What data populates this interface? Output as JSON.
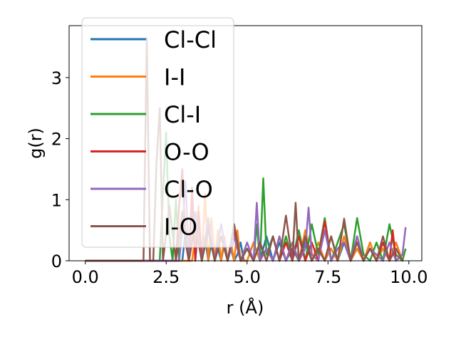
{
  "chart_data": {
    "type": "line",
    "xlabel": "r (Å)",
    "ylabel": "g(r)",
    "xlim": [
      -0.5,
      10.4
    ],
    "ylim": [
      0,
      3.85
    ],
    "xticks": [
      "0.0",
      "2.5",
      "5.0",
      "7.5",
      "10.0"
    ],
    "yticks": [
      "0",
      "1",
      "2",
      "3"
    ],
    "grid": false,
    "legend_position": "top-left",
    "series": [
      {
        "name": "Cl-Cl",
        "color": "#1f77b4",
        "x": [
          0.0,
          3.0,
          3.1,
          3.2,
          3.3,
          3.4,
          3.5,
          3.6,
          3.7,
          3.8,
          3.9,
          4.0,
          4.1,
          4.2,
          4.3,
          4.4,
          4.5,
          4.6,
          4.7,
          4.8,
          4.9,
          5.0,
          5.2,
          5.4,
          5.6,
          5.8,
          6.0,
          6.2,
          6.4,
          6.6,
          6.8,
          7.0,
          7.2,
          7.4,
          7.6,
          7.8,
          8.0,
          8.2,
          8.4,
          8.6,
          8.8,
          9.0,
          9.2,
          9.4,
          9.6,
          9.8
        ],
        "y": [
          0.0,
          0.0,
          0.5,
          0.0,
          1.0,
          0.0,
          0.6,
          0.0,
          0.4,
          0.0,
          0.3,
          0.0,
          0.2,
          0.0,
          0.3,
          0.0,
          0.2,
          0.0,
          0.1,
          0.3,
          0.0,
          0.0,
          0.3,
          0.0,
          0.4,
          0.0,
          0.3,
          0.0,
          0.2,
          0.0,
          0.3,
          0.0,
          0.2,
          0.0,
          0.4,
          0.0,
          0.3,
          0.0,
          0.2,
          0.0,
          0.3,
          0.0,
          0.2,
          0.0,
          0.3,
          0.0
        ]
      },
      {
        "name": "I-I",
        "color": "#ff7f0e",
        "x": [
          0.0,
          3.3,
          3.4,
          3.5,
          3.6,
          3.7,
          3.8,
          3.9,
          4.0,
          4.1,
          4.2,
          4.3,
          4.4,
          4.5,
          4.6,
          4.7,
          4.8,
          5.0,
          5.2,
          5.4,
          5.6,
          5.8,
          6.0,
          6.2,
          6.4,
          6.6,
          6.8,
          7.0,
          7.2,
          7.4,
          7.6,
          7.8,
          8.0,
          8.2,
          8.4,
          8.6,
          8.8,
          9.0,
          9.2,
          9.4,
          9.6,
          9.8
        ],
        "y": [
          0.0,
          0.0,
          0.4,
          0.9,
          0.0,
          1.1,
          0.0,
          0.7,
          0.0,
          0.5,
          0.0,
          0.4,
          0.0,
          0.3,
          0.0,
          0.5,
          0.0,
          0.0,
          0.3,
          0.0,
          0.2,
          0.0,
          0.4,
          0.0,
          0.3,
          0.0,
          0.5,
          0.0,
          0.3,
          0.0,
          0.2,
          0.0,
          0.4,
          0.0,
          0.2,
          0.0,
          0.3,
          0.0,
          0.2,
          0.0,
          0.3,
          0.0
        ]
      },
      {
        "name": "Cl-I",
        "color": "#2ca02c",
        "x": [
          0.0,
          2.3,
          2.4,
          2.5,
          2.6,
          2.7,
          2.8,
          2.9,
          3.0,
          3.2,
          3.4,
          3.6,
          3.8,
          4.0,
          4.2,
          4.4,
          4.6,
          4.8,
          5.0,
          5.2,
          5.3,
          5.4,
          5.5,
          5.6,
          5.8,
          6.0,
          6.2,
          6.4,
          6.6,
          6.8,
          7.0,
          7.2,
          7.4,
          7.6,
          7.8,
          8.0,
          8.2,
          8.4,
          8.6,
          8.8,
          9.0,
          9.2,
          9.4,
          9.6,
          9.8,
          9.9
        ],
        "y": [
          0.0,
          0.0,
          1.1,
          2.1,
          0.4,
          0.0,
          1.0,
          0.0,
          0.7,
          0.0,
          0.6,
          0.0,
          0.5,
          0.0,
          0.4,
          0.0,
          0.5,
          0.0,
          0.2,
          0.0,
          0.6,
          0.0,
          1.35,
          0.1,
          0.4,
          0.0,
          0.4,
          0.0,
          0.5,
          0.0,
          0.6,
          0.1,
          0.7,
          0.0,
          0.3,
          0.6,
          0.0,
          0.7,
          0.1,
          0.0,
          0.3,
          0.0,
          0.6,
          0.1,
          0.0,
          0.2
        ]
      },
      {
        "name": "O-O",
        "color": "#d62728",
        "x": [
          0.0,
          2.8,
          2.9,
          3.0,
          3.1,
          3.2,
          3.3,
          3.4,
          3.5,
          3.6,
          3.8,
          4.0,
          4.2,
          4.4,
          4.6,
          4.8,
          5.0,
          5.2,
          5.4,
          5.6,
          5.8,
          6.0,
          6.2,
          6.4,
          6.6,
          6.8,
          7.0,
          7.2,
          7.4,
          7.6,
          7.8,
          8.0,
          8.2,
          8.4,
          8.6,
          8.8,
          9.0,
          9.2,
          9.4,
          9.5,
          9.6,
          9.8
        ],
        "y": [
          0.0,
          0.0,
          0.9,
          1.5,
          0.3,
          0.0,
          1.2,
          0.0,
          0.8,
          0.0,
          0.6,
          0.0,
          0.4,
          0.0,
          0.5,
          0.0,
          0.2,
          0.0,
          0.3,
          0.0,
          0.4,
          0.0,
          0.3,
          0.0,
          0.4,
          0.0,
          0.3,
          0.0,
          0.65,
          0.0,
          0.2,
          0.3,
          0.0,
          0.4,
          0.0,
          0.2,
          0.0,
          0.3,
          0.0,
          0.5,
          0.0,
          0.1
        ]
      },
      {
        "name": "Cl-O",
        "color": "#9467bd",
        "x": [
          0.0,
          2.9,
          3.0,
          3.1,
          3.2,
          3.4,
          3.6,
          3.8,
          4.0,
          4.2,
          4.4,
          4.6,
          4.8,
          5.0,
          5.2,
          5.3,
          5.4,
          5.6,
          5.8,
          6.0,
          6.2,
          6.4,
          6.6,
          6.8,
          6.9,
          7.0,
          7.2,
          7.4,
          7.6,
          7.8,
          8.0,
          8.2,
          8.4,
          8.6,
          8.8,
          9.0,
          9.2,
          9.4,
          9.6,
          9.8,
          9.9
        ],
        "y": [
          0.0,
          0.0,
          0.5,
          1.3,
          0.0,
          0.8,
          0.0,
          0.7,
          0.0,
          0.6,
          0.0,
          0.4,
          0.0,
          0.3,
          0.0,
          0.95,
          0.0,
          0.2,
          0.0,
          0.4,
          0.0,
          0.3,
          0.0,
          0.2,
          0.87,
          0.1,
          0.0,
          0.5,
          0.0,
          0.2,
          0.3,
          0.0,
          0.4,
          0.0,
          0.2,
          0.1,
          0.0,
          0.3,
          0.0,
          0.1,
          0.55
        ]
      },
      {
        "name": "I-O",
        "color": "#8c564b",
        "x": [
          0.0,
          1.8,
          1.9,
          2.0,
          2.1,
          2.2,
          2.3,
          2.4,
          2.6,
          2.8,
          3.0,
          3.2,
          3.4,
          3.6,
          3.8,
          4.0,
          4.2,
          4.4,
          4.6,
          4.8,
          5.0,
          5.2,
          5.4,
          5.6,
          5.8,
          6.0,
          6.2,
          6.4,
          6.5,
          6.6,
          6.8,
          7.0,
          7.2,
          7.4,
          7.6,
          7.8,
          8.0,
          8.2,
          8.4,
          8.6,
          8.8,
          9.0,
          9.2,
          9.4,
          9.6,
          9.8
        ],
        "y": [
          0.0,
          0.0,
          3.65,
          0.0,
          0.0,
          1.6,
          2.5,
          0.0,
          0.9,
          0.0,
          0.8,
          0.0,
          0.6,
          0.0,
          0.5,
          0.0,
          0.4,
          0.0,
          0.6,
          0.0,
          0.2,
          0.0,
          0.3,
          0.0,
          0.4,
          0.0,
          0.74,
          0.0,
          0.95,
          0.0,
          0.4,
          0.0,
          0.2,
          0.0,
          0.4,
          0.0,
          0.69,
          0.0,
          0.3,
          0.0,
          0.2,
          0.0,
          0.4,
          0.0,
          0.2,
          0.0
        ]
      }
    ]
  }
}
